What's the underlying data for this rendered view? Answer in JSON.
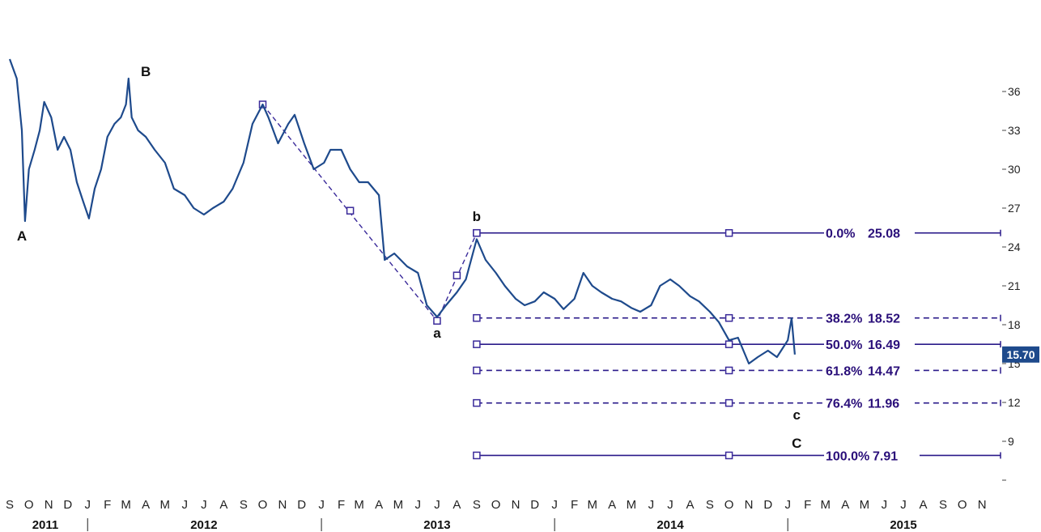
{
  "chart_data": {
    "type": "line",
    "ylim": [
      6,
      39
    ],
    "yticks": [
      36,
      33,
      30,
      27,
      24,
      21,
      18,
      15,
      12,
      9
    ],
    "xlim": [
      "2011-09-01",
      "2015-11-30"
    ],
    "x_month_labels": [
      "S",
      "O",
      "N",
      "D",
      "J",
      "F",
      "M",
      "A",
      "M",
      "J",
      "J",
      "A",
      "S",
      "O",
      "N",
      "D",
      "J",
      "F",
      "M",
      "A",
      "M",
      "J",
      "J",
      "A",
      "S",
      "O",
      "N",
      "D",
      "J",
      "F",
      "M",
      "A",
      "M",
      "J",
      "J",
      "A",
      "S",
      "O",
      "N",
      "D",
      "J",
      "F",
      "M",
      "A",
      "M",
      "J",
      "J",
      "A",
      "S",
      "O",
      "N"
    ],
    "x_year_labels": [
      {
        "label": "2011",
        "x": "2011-10-15"
      },
      {
        "label": "2012",
        "x": "2012-07-01"
      },
      {
        "label": "2013",
        "x": "2013-07-01"
      },
      {
        "label": "2014",
        "x": "2014-07-01"
      },
      {
        "label": "2015",
        "x": "2015-07-01"
      }
    ],
    "year_separators": [
      "2012-01-01",
      "2013-01-01",
      "2014-01-01",
      "2015-01-01"
    ],
    "series": [
      {
        "color": "#1e4a8c",
        "points": [
          [
            "2011-09-01",
            38.5
          ],
          [
            "2011-09-12",
            37.0
          ],
          [
            "2011-09-20",
            33.0
          ],
          [
            "2011-09-25",
            26.0
          ],
          [
            "2011-10-01",
            30.0
          ],
          [
            "2011-10-10",
            31.5
          ],
          [
            "2011-10-18",
            33.0
          ],
          [
            "2011-10-25",
            35.2
          ],
          [
            "2011-11-05",
            34.0
          ],
          [
            "2011-11-15",
            31.5
          ],
          [
            "2011-11-25",
            32.5
          ],
          [
            "2011-12-05",
            31.5
          ],
          [
            "2011-12-15",
            29.0
          ],
          [
            "2011-12-25",
            27.5
          ],
          [
            "2012-01-03",
            26.2
          ],
          [
            "2012-01-12",
            28.5
          ],
          [
            "2012-01-22",
            30.0
          ],
          [
            "2012-02-01",
            32.5
          ],
          [
            "2012-02-12",
            33.5
          ],
          [
            "2012-02-22",
            34.0
          ],
          [
            "2012-03-01",
            35.0
          ],
          [
            "2012-03-05",
            37.0
          ],
          [
            "2012-03-10",
            34.0
          ],
          [
            "2012-03-20",
            33.0
          ],
          [
            "2012-04-01",
            32.5
          ],
          [
            "2012-04-15",
            31.5
          ],
          [
            "2012-05-01",
            30.5
          ],
          [
            "2012-05-15",
            28.5
          ],
          [
            "2012-06-01",
            28.0
          ],
          [
            "2012-06-15",
            27.0
          ],
          [
            "2012-07-01",
            26.5
          ],
          [
            "2012-07-15",
            27.0
          ],
          [
            "2012-08-01",
            27.5
          ],
          [
            "2012-08-15",
            28.5
          ],
          [
            "2012-09-01",
            30.5
          ],
          [
            "2012-09-15",
            33.5
          ],
          [
            "2012-10-01",
            35.0
          ],
          [
            "2012-10-10",
            34.0
          ],
          [
            "2012-10-25",
            32.0
          ],
          [
            "2012-11-10",
            33.5
          ],
          [
            "2012-11-20",
            34.2
          ],
          [
            "2012-12-05",
            32.0
          ],
          [
            "2012-12-20",
            30.0
          ],
          [
            "2013-01-05",
            30.5
          ],
          [
            "2013-01-15",
            31.5
          ],
          [
            "2013-02-01",
            31.5
          ],
          [
            "2013-02-15",
            30.0
          ],
          [
            "2013-03-01",
            29.0
          ],
          [
            "2013-03-15",
            29.0
          ],
          [
            "2013-04-01",
            28.0
          ],
          [
            "2013-04-10",
            23.0
          ],
          [
            "2013-04-25",
            23.5
          ],
          [
            "2013-05-15",
            22.5
          ],
          [
            "2013-06-01",
            22.0
          ],
          [
            "2013-06-15",
            19.5
          ],
          [
            "2013-07-01",
            18.6
          ],
          [
            "2013-07-15",
            19.5
          ],
          [
            "2013-08-01",
            20.5
          ],
          [
            "2013-08-15",
            21.5
          ],
          [
            "2013-09-01",
            24.6
          ],
          [
            "2013-09-15",
            23.0
          ],
          [
            "2013-10-01",
            22.0
          ],
          [
            "2013-10-15",
            21.0
          ],
          [
            "2013-11-01",
            20.0
          ],
          [
            "2013-11-15",
            19.5
          ],
          [
            "2013-12-01",
            19.8
          ],
          [
            "2013-12-15",
            20.5
          ],
          [
            "2014-01-01",
            20.0
          ],
          [
            "2014-01-15",
            19.2
          ],
          [
            "2014-02-01",
            20.0
          ],
          [
            "2014-02-15",
            22.0
          ],
          [
            "2014-03-01",
            21.0
          ],
          [
            "2014-03-15",
            20.5
          ],
          [
            "2014-04-01",
            20.0
          ],
          [
            "2014-04-15",
            19.8
          ],
          [
            "2014-05-01",
            19.3
          ],
          [
            "2014-05-15",
            19.0
          ],
          [
            "2014-06-01",
            19.5
          ],
          [
            "2014-06-15",
            21.0
          ],
          [
            "2014-07-01",
            21.5
          ],
          [
            "2014-07-15",
            21.0
          ],
          [
            "2014-08-01",
            20.2
          ],
          [
            "2014-08-15",
            19.8
          ],
          [
            "2014-09-01",
            19.0
          ],
          [
            "2014-09-15",
            18.2
          ],
          [
            "2014-10-01",
            16.8
          ],
          [
            "2014-10-15",
            17.0
          ],
          [
            "2014-11-01",
            15.0
          ],
          [
            "2014-11-15",
            15.5
          ],
          [
            "2014-12-01",
            16.0
          ],
          [
            "2014-12-15",
            15.5
          ],
          [
            "2015-01-01",
            16.8
          ],
          [
            "2015-01-07",
            18.5
          ],
          [
            "2015-01-12",
            15.7
          ]
        ]
      }
    ],
    "fib_levels": [
      {
        "pct": "0.0%",
        "value": "25.08",
        "level": 25.08,
        "style": "solid"
      },
      {
        "pct": "38.2%",
        "value": "18.52",
        "level": 18.52,
        "style": "dashed"
      },
      {
        "pct": "50.0%",
        "value": "16.49",
        "level": 16.49,
        "style": "solid"
      },
      {
        "pct": "61.8%",
        "value": "14.47",
        "level": 14.47,
        "style": "dashed"
      },
      {
        "pct": "76.4%",
        "value": "11.96",
        "level": 11.96,
        "style": "dashed"
      },
      {
        "pct": "100.0%",
        "value": "7.91",
        "level": 7.91,
        "style": "solid"
      }
    ],
    "fib_start": "2013-09-01",
    "fib_mid": "2014-10-01",
    "wave_path": [
      [
        "2012-10-01",
        35.0
      ],
      [
        "2013-07-01",
        18.3
      ],
      [
        "2013-09-01",
        25.08
      ]
    ],
    "wave_path_markers": [
      [
        "2012-10-01",
        35.0
      ],
      [
        "2013-02-15",
        26.8
      ],
      [
        "2013-07-01",
        18.3
      ],
      [
        "2013-08-01",
        21.8
      ],
      [
        "2013-09-01",
        25.08
      ]
    ],
    "wave_labels": [
      {
        "label": "A",
        "x": "2011-09-20",
        "y": 24.5
      },
      {
        "label": "B",
        "x": "2012-04-01",
        "y": 37.2
      },
      {
        "label": "a",
        "x": "2013-07-01",
        "y": 17.0
      },
      {
        "label": "b",
        "x": "2013-09-01",
        "y": 26.0
      },
      {
        "label": "c",
        "x": "2015-01-15",
        "y": 10.7
      },
      {
        "label": "C",
        "x": "2015-01-15",
        "y": 8.5
      }
    ],
    "last_price": "15.70",
    "last_price_color": "#1e4a8c"
  }
}
